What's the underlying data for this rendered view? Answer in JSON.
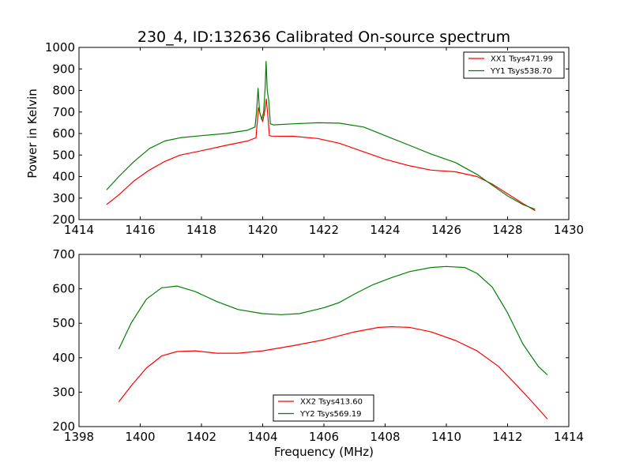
{
  "title": "230_4, ID:132636 Calibrated On-source spectrum",
  "colors": {
    "red": "#ff0000",
    "green": "#008000"
  },
  "chart_data": [
    {
      "type": "line",
      "xlabel": "",
      "ylabel": "Power in Kelvin",
      "xlim": [
        1414,
        1430
      ],
      "ylim": [
        200,
        1000
      ],
      "xticks": [
        1414,
        1416,
        1418,
        1420,
        1422,
        1424,
        1426,
        1428,
        1430
      ],
      "yticks": [
        200,
        300,
        400,
        500,
        600,
        700,
        800,
        900,
        1000
      ],
      "legend_position": "top-right",
      "series": [
        {
          "name": "XX1 Tsys471.99",
          "color": "#ff0000",
          "x": [
            1414.9,
            1415.3,
            1415.8,
            1416.3,
            1416.8,
            1417.3,
            1418.0,
            1418.8,
            1419.5,
            1419.78,
            1419.86,
            1419.92,
            1420.0,
            1420.07,
            1420.12,
            1420.17,
            1420.22,
            1420.3,
            1421.0,
            1421.8,
            1422.5,
            1423.2,
            1424.0,
            1424.8,
            1425.5,
            1426.3,
            1427.0,
            1427.5,
            1428.0,
            1428.5,
            1428.9
          ],
          "y": [
            270,
            315,
            380,
            430,
            470,
            500,
            520,
            545,
            565,
            580,
            720,
            690,
            655,
            705,
            760,
            680,
            590,
            588,
            587,
            577,
            555,
            520,
            480,
            450,
            430,
            422,
            400,
            365,
            320,
            275,
            242
          ]
        },
        {
          "name": "YY1 Tsys538.70",
          "color": "#008000",
          "x": [
            1414.9,
            1415.3,
            1415.8,
            1416.3,
            1416.8,
            1417.3,
            1418.0,
            1418.8,
            1419.5,
            1419.75,
            1419.8,
            1419.85,
            1419.9,
            1419.97,
            1420.03,
            1420.08,
            1420.11,
            1420.15,
            1420.2,
            1420.25,
            1420.35,
            1421.0,
            1421.8,
            1422.5,
            1423.3,
            1424.0,
            1424.8,
            1425.5,
            1426.3,
            1427.0,
            1427.5,
            1428.0,
            1428.5,
            1428.9
          ],
          "y": [
            338,
            400,
            470,
            530,
            565,
            580,
            590,
            600,
            615,
            630,
            700,
            810,
            700,
            665,
            700,
            810,
            935,
            800,
            750,
            645,
            640,
            645,
            650,
            648,
            630,
            590,
            545,
            505,
            465,
            410,
            360,
            310,
            270,
            248
          ]
        }
      ]
    },
    {
      "type": "line",
      "xlabel": "Frequency (MHz)",
      "ylabel": "",
      "xlim": [
        1398,
        1414
      ],
      "ylim": [
        200,
        700
      ],
      "xticks": [
        1398,
        1400,
        1402,
        1404,
        1406,
        1408,
        1410,
        1412,
        1414
      ],
      "yticks": [
        200,
        300,
        400,
        500,
        600,
        700
      ],
      "legend_position": "bottom-center",
      "series": [
        {
          "name": "XX2 Tsys413.60",
          "color": "#ff0000",
          "x": [
            1399.3,
            1399.7,
            1400.2,
            1400.7,
            1401.2,
            1401.8,
            1402.5,
            1403.2,
            1404.0,
            1405.0,
            1406.0,
            1407.0,
            1407.8,
            1408.2,
            1408.8,
            1409.5,
            1410.3,
            1411.0,
            1411.7,
            1412.3,
            1412.8,
            1413.3
          ],
          "y": [
            272,
            318,
            370,
            405,
            418,
            420,
            413,
            413,
            420,
            435,
            452,
            475,
            488,
            490,
            488,
            475,
            450,
            420,
            375,
            320,
            272,
            222
          ]
        },
        {
          "name": "YY2 Tsys569.19",
          "color": "#008000",
          "x": [
            1399.3,
            1399.7,
            1400.2,
            1400.7,
            1401.2,
            1401.8,
            1402.5,
            1403.2,
            1404.0,
            1404.6,
            1405.2,
            1406.0,
            1406.5,
            1407.0,
            1407.6,
            1408.2,
            1408.8,
            1409.5,
            1410.0,
            1410.6,
            1411.0,
            1411.5,
            1412.0,
            1412.5,
            1413.0,
            1413.3
          ],
          "y": [
            425,
            500,
            570,
            603,
            608,
            592,
            563,
            540,
            528,
            525,
            528,
            545,
            560,
            585,
            612,
            632,
            650,
            662,
            665,
            662,
            645,
            605,
            530,
            440,
            375,
            350
          ]
        }
      ]
    }
  ]
}
